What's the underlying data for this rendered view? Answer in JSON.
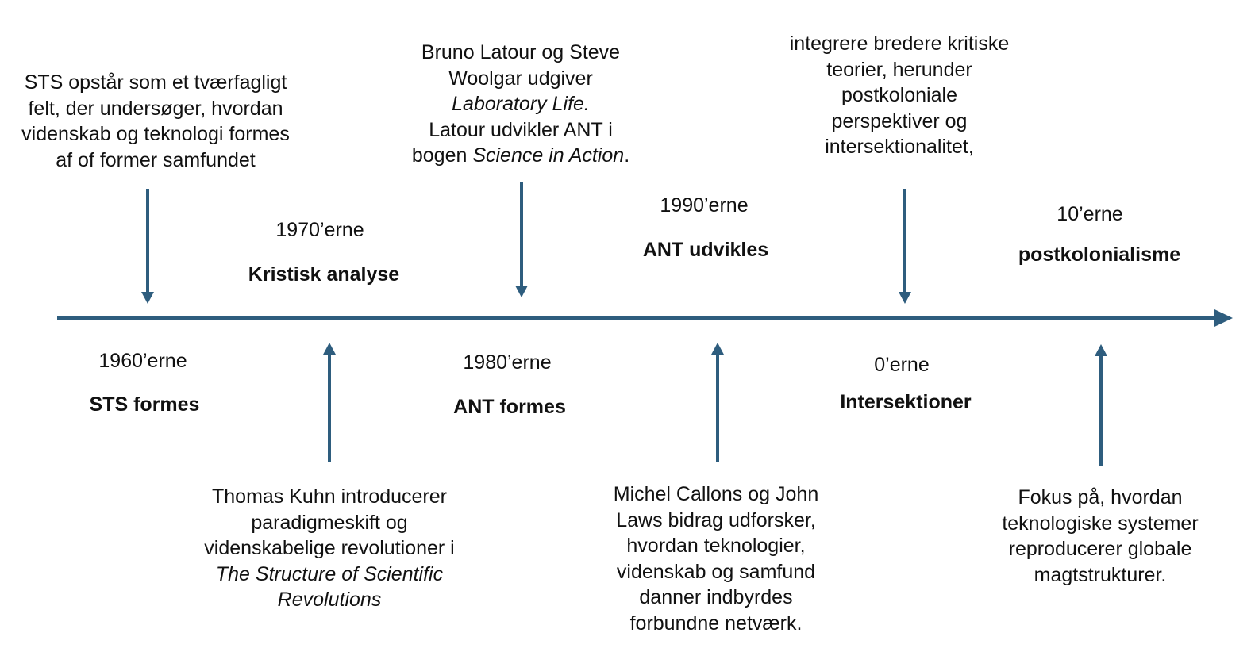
{
  "colors": {
    "timeline": "#2e5d7e",
    "text": "#111111",
    "background": "#ffffff"
  },
  "periods": [
    {
      "decade": "1960’erne",
      "title": "STS formes",
      "description": [
        "STS opstår som et tværfagligt",
        "felt, der undersøger, hvordan",
        "videnskab og teknologi formes",
        "af of former samfundet"
      ]
    },
    {
      "decade": "1970’erne",
      "title": "Kristisk analyse",
      "description": [
        "Thomas Kuhn introducerer",
        "paradigmeskift og",
        "videnskabelige revolutioner i"
      ],
      "description_italic": [
        "The Structure of Scientific",
        "Revolutions"
      ]
    },
    {
      "decade": "1980’erne",
      "title": "ANT formes",
      "description": [
        "Bruno Latour og Steve",
        "Woolgar udgiver"
      ],
      "italic_title": "Laboratory Life.",
      "description_2": "Latour udvikler ANT i",
      "description_3_prefix": "bogen ",
      "description_3_italic": "Science in Action",
      "description_3_suffix": "."
    },
    {
      "decade": "1990’erne",
      "title": "ANT udvikles",
      "description": [
        "Michel Callons og John",
        "Laws bidrag udforsker,",
        "hvordan teknologier,",
        "videnskab og samfund",
        "danner indbyrdes",
        "forbundne netværk."
      ]
    },
    {
      "decade": "0’erne",
      "title": "Intersektioner",
      "description": [
        "integrere bredere kritiske",
        "teorier, herunder",
        "postkoloniale",
        "perspektiver og",
        "intersektionalitet,"
      ]
    },
    {
      "decade": "10’erne",
      "title": "postkolonialisme",
      "description": [
        "Fokus på, hvordan",
        "teknologiske systemer",
        "reproducerer globale",
        "magtstrukturer."
      ]
    }
  ]
}
